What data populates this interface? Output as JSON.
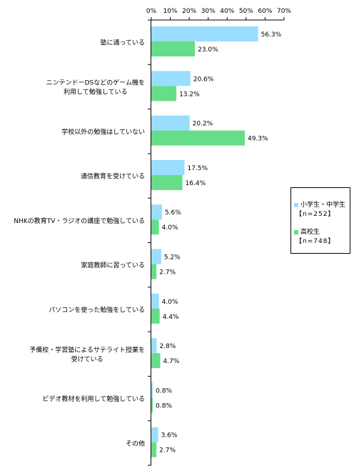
{
  "chart_data": {
    "type": "bar",
    "orientation": "horizontal",
    "title": "",
    "xlabel": "",
    "ylabel": "",
    "xlim": [
      0,
      70
    ],
    "x_ticks": [
      "0%",
      "10%",
      "20%",
      "30%",
      "40%",
      "50%",
      "60%",
      "70%"
    ],
    "grid": false,
    "legend_position": "right",
    "categories": [
      "塾に通っている",
      "ニンテンドーDSなどのゲーム機を\n利用して勉強している",
      "学校以外の勉強はしていない",
      "通信教育を受けている",
      "NHKの教育TV・ラジオの講座で勉強している",
      "家庭教師に習っている",
      "パソコンを使った勉強をしている",
      "予備校・学習塾によるサテライト授業を\n受けている",
      "ビデオ教材を利用して勉強している",
      "その他"
    ],
    "series": [
      {
        "name": "小学生・中学生",
        "n_label": "【n=252】",
        "color": "#99ddff",
        "values": [
          56.3,
          20.6,
          20.2,
          17.5,
          5.6,
          5.2,
          4.0,
          2.8,
          0.8,
          3.6
        ],
        "labels": [
          "56.3%",
          "20.6%",
          "20.2%",
          "17.5%",
          "5.6%",
          "5.2%",
          "4.0%",
          "2.8%",
          "0.8%",
          "3.6%"
        ]
      },
      {
        "name": "高校生",
        "n_label": "【n=748】",
        "color": "#66dd88",
        "values": [
          23.0,
          13.2,
          49.3,
          16.4,
          4.0,
          2.7,
          4.4,
          4.7,
          0.8,
          2.7
        ],
        "labels": [
          "23.0%",
          "13.2%",
          "49.3%",
          "16.4%",
          "4.0%",
          "2.7%",
          "4.4%",
          "4.7%",
          "0.8%",
          "2.7%"
        ]
      }
    ]
  }
}
